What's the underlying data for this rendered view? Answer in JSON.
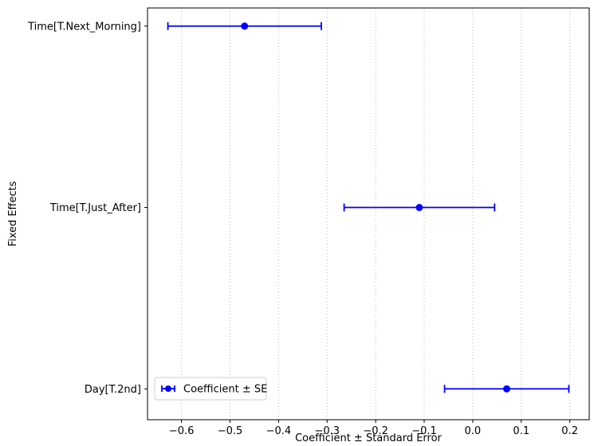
{
  "figure": {
    "background": "#ffffff"
  },
  "chart_data": {
    "type": "scatter",
    "subtype": "horizontal-errorbar",
    "title": "",
    "xlabel": "Coefficient ± Standard Error",
    "ylabel": "Fixed Effects",
    "categories": [
      "Time[T.Next_Morning]",
      "Time[T.Just_After]",
      "Day[T.2nd]"
    ],
    "series": [
      {
        "name": "Coefficient ± SE",
        "coefficients": [
          -0.47,
          -0.11,
          0.07
        ],
        "standard_errors": [
          0.158,
          0.155,
          0.128
        ]
      }
    ],
    "xlim": [
      -0.67,
      0.24
    ],
    "xticks": [
      -0.6,
      -0.5,
      -0.4,
      -0.3,
      -0.2,
      -0.1,
      0.0,
      0.1,
      0.2
    ],
    "xtick_labels": [
      "−0.6",
      "−0.5",
      "−0.4",
      "−0.3",
      "−0.2",
      "−0.1",
      "0.0",
      "0.1",
      "0.2"
    ],
    "grid": {
      "axis": "x",
      "style": "dotted",
      "color": "#bbbbbb"
    },
    "legend": {
      "label": "Coefficient ± SE",
      "position": "lower left"
    },
    "marker_color": "#0000ff",
    "axis_color": "#000000",
    "legend_border_color": "#cccccc"
  }
}
